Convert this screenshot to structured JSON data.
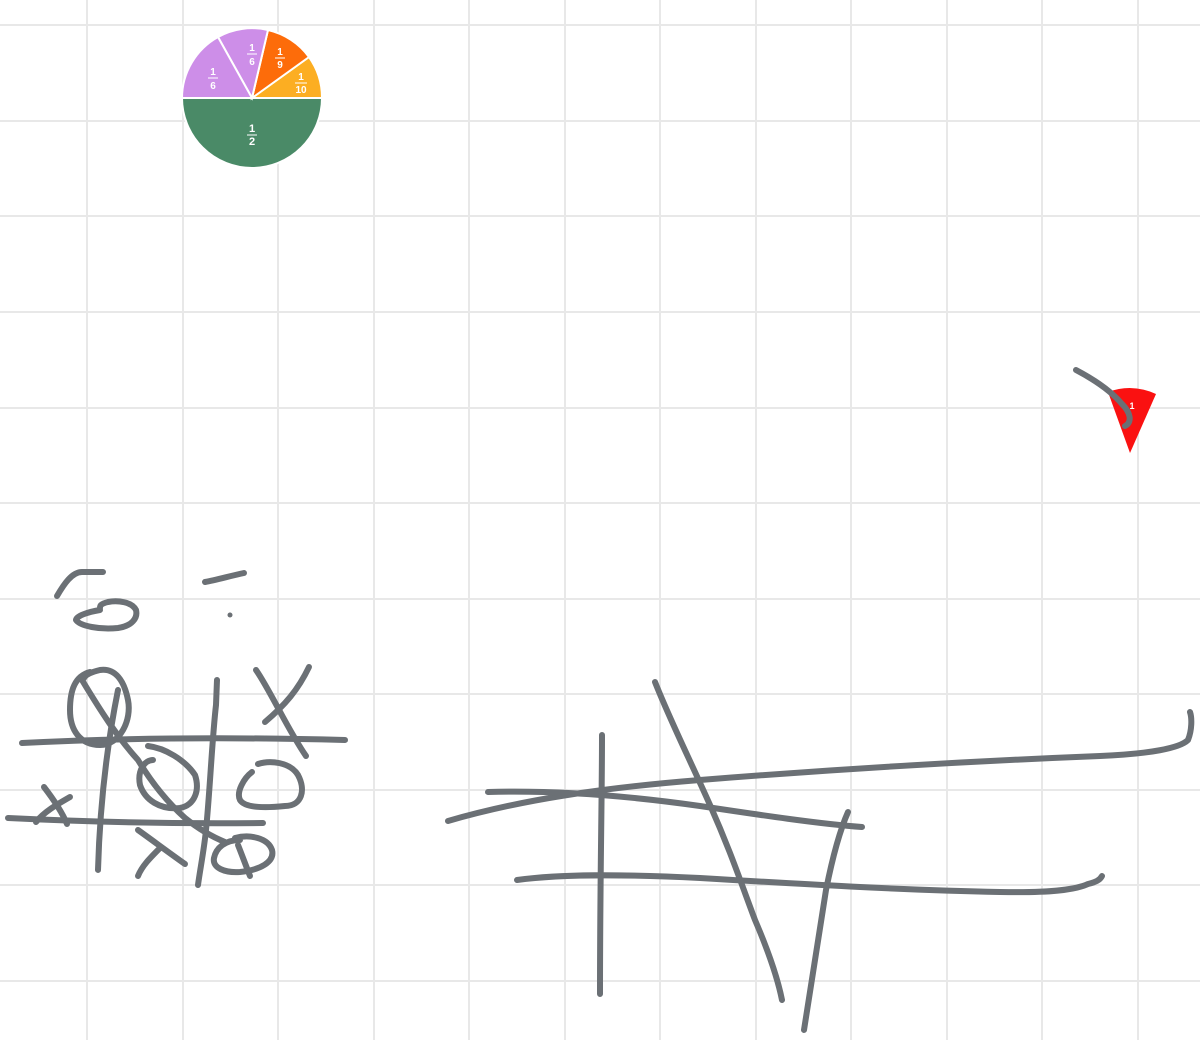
{
  "board": {
    "grid_color": "#e8e8e8",
    "ink_color": "#6b7075"
  },
  "fraction_pie": {
    "pieces": [
      {
        "name": "half",
        "numerator": "1",
        "denominator": "2",
        "value": 0.5,
        "color": "#4a8a67"
      },
      {
        "name": "tenth",
        "numerator": "1",
        "denominator": "10",
        "value": 0.1,
        "color": "#fcae22"
      },
      {
        "name": "ninth",
        "numerator": "1",
        "denominator": "9",
        "value": 0.1111,
        "color": "#fd6c0a"
      },
      {
        "name": "sixth-a",
        "numerator": "1",
        "denominator": "6",
        "value": 0.1667,
        "color": "#cd8ee8"
      },
      {
        "name": "sixth-b",
        "numerator": "1",
        "denominator": "6",
        "value": 0.1667,
        "color": "#cd8ee8"
      }
    ]
  },
  "red_wedge": {
    "numerator": "1",
    "denominator": "",
    "color": "#fa1111"
  }
}
